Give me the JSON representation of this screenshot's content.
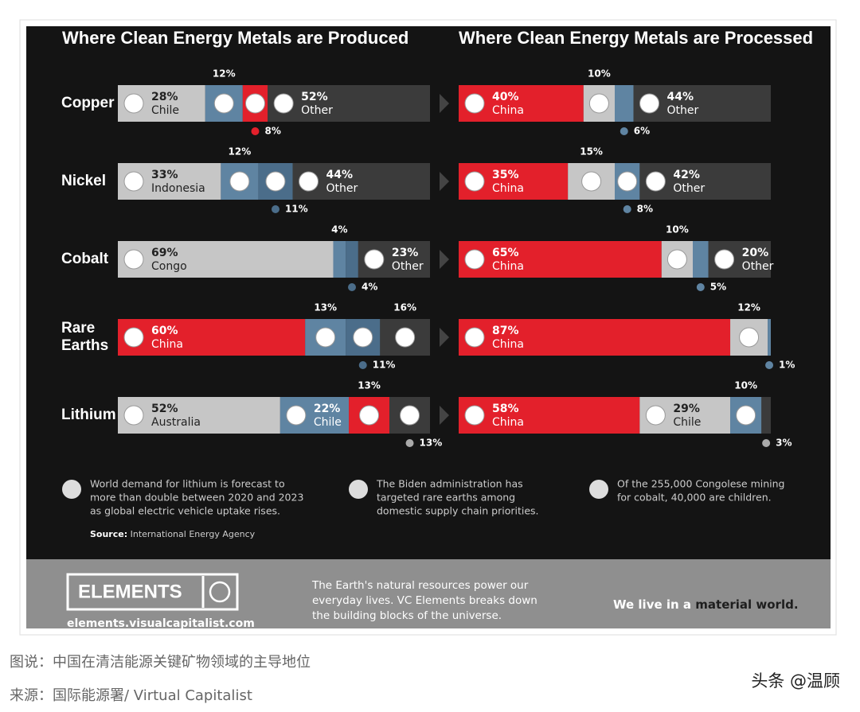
{
  "chart_data": [
    {
      "type": "bar",
      "stacked": true,
      "orientation": "horizontal",
      "title": "Where Clean Energy Metals are Produced",
      "categories": [
        "Copper",
        "Nickel",
        "Cobalt",
        "Rare Earths",
        "Lithium"
      ],
      "rows": [
        {
          "values": [
            28,
            12,
            8,
            52
          ],
          "value_labels": [
            "28%",
            "12%",
            "8%",
            "52%"
          ],
          "names": [
            "Chile",
            null,
            null,
            "Other"
          ],
          "colors": [
            "#c6c6c6",
            "#5f84a2",
            "#e3202b",
            "#3b3b3b"
          ]
        },
        {
          "values": [
            33,
            12,
            11,
            44
          ],
          "value_labels": [
            "33%",
            "12%",
            "11%",
            "44%"
          ],
          "names": [
            "Indonesia",
            null,
            null,
            "Other"
          ],
          "colors": [
            "#c6c6c6",
            "#5f84a2",
            "#4b6d8a",
            "#3b3b3b"
          ]
        },
        {
          "values": [
            69,
            4,
            4,
            23
          ],
          "value_labels": [
            "69%",
            "4%",
            "4%",
            "23%"
          ],
          "names": [
            "Congo",
            null,
            null,
            "Other"
          ],
          "colors": [
            "#c6c6c6",
            "#5f84a2",
            "#4b6d8a",
            "#3b3b3b"
          ]
        },
        {
          "values": [
            60,
            13,
            11,
            16
          ],
          "value_labels": [
            "60%",
            "13%",
            "11%",
            "16%"
          ],
          "names": [
            "China",
            null,
            null,
            null
          ],
          "colors": [
            "#e3202b",
            "#5f84a2",
            "#4b6d8a",
            "#3b3b3b"
          ]
        },
        {
          "values": [
            52,
            22,
            13,
            13
          ],
          "value_labels": [
            "52%",
            "22%",
            "13%",
            "13%"
          ],
          "names": [
            "Australia",
            "Chile",
            null,
            null
          ],
          "colors": [
            "#c6c6c6",
            "#5f84a2",
            "#e3202b",
            "#3b3b3b"
          ]
        }
      ]
    },
    {
      "type": "bar",
      "stacked": true,
      "orientation": "horizontal",
      "title": "Where Clean Energy Metals are Processed",
      "categories": [
        "Copper",
        "Nickel",
        "Cobalt",
        "Rare Earths",
        "Lithium"
      ],
      "rows": [
        {
          "values": [
            40,
            10,
            6,
            44
          ],
          "value_labels": [
            "40%",
            "10%",
            "6%",
            "44%"
          ],
          "names": [
            "China",
            null,
            null,
            "Other"
          ],
          "colors": [
            "#e3202b",
            "#c6c6c6",
            "#5f84a2",
            "#3b3b3b"
          ]
        },
        {
          "values": [
            35,
            15,
            8,
            42
          ],
          "value_labels": [
            "35%",
            "15%",
            "8%",
            "42%"
          ],
          "names": [
            "China",
            null,
            null,
            "Other"
          ],
          "colors": [
            "#e3202b",
            "#c6c6c6",
            "#5f84a2",
            "#3b3b3b"
          ]
        },
        {
          "values": [
            65,
            10,
            5,
            20
          ],
          "value_labels": [
            "65%",
            "10%",
            "5%",
            "20%"
          ],
          "names": [
            "China",
            null,
            null,
            "Other"
          ],
          "colors": [
            "#e3202b",
            "#c6c6c6",
            "#5f84a2",
            "#3b3b3b"
          ]
        },
        {
          "values": [
            87,
            12,
            1
          ],
          "value_labels": [
            "87%",
            "12%",
            "1%"
          ],
          "names": [
            "China",
            null,
            null
          ],
          "colors": [
            "#e3202b",
            "#c6c6c6",
            "#5f84a2"
          ]
        },
        {
          "values": [
            58,
            29,
            10,
            3
          ],
          "value_labels": [
            "58%",
            "29%",
            "10%",
            "3%"
          ],
          "names": [
            "China",
            "Chile",
            null,
            null
          ],
          "colors": [
            "#e3202b",
            "#c6c6c6",
            "#5f84a2",
            "#3b3b3b"
          ]
        }
      ]
    }
  ],
  "notes": [
    {
      "lines": [
        "World demand for lithium is forecast to",
        "more than double between 2020 and 2023",
        "as global electric vehicle uptake rises."
      ]
    },
    {
      "lines": [
        "The Biden administration has",
        "targeted rare earths among",
        "domestic supply chain priorities."
      ]
    },
    {
      "lines": [
        "Of the 255,000 Congolese mining",
        "for cobalt, 40,000 are children."
      ]
    }
  ],
  "source": {
    "label": "Source:",
    "text": "International Energy Agency"
  },
  "footer": {
    "logo": "ELEMENTS",
    "url": "elements.visualcapitalist.com",
    "blurb": [
      "The Earth's natural resources power our",
      "everyday lives. VC Elements breaks down",
      "the building blocks of the universe."
    ],
    "tagline": {
      "prefix": "We live in a",
      "emphasis": "material world."
    }
  },
  "captions": [
    "图说：中国在清洁能源关键矿物领域的主导地位",
    "来源：国际能源署/ Virtual Capitalist"
  ],
  "watermark": "头条 @温顾"
}
